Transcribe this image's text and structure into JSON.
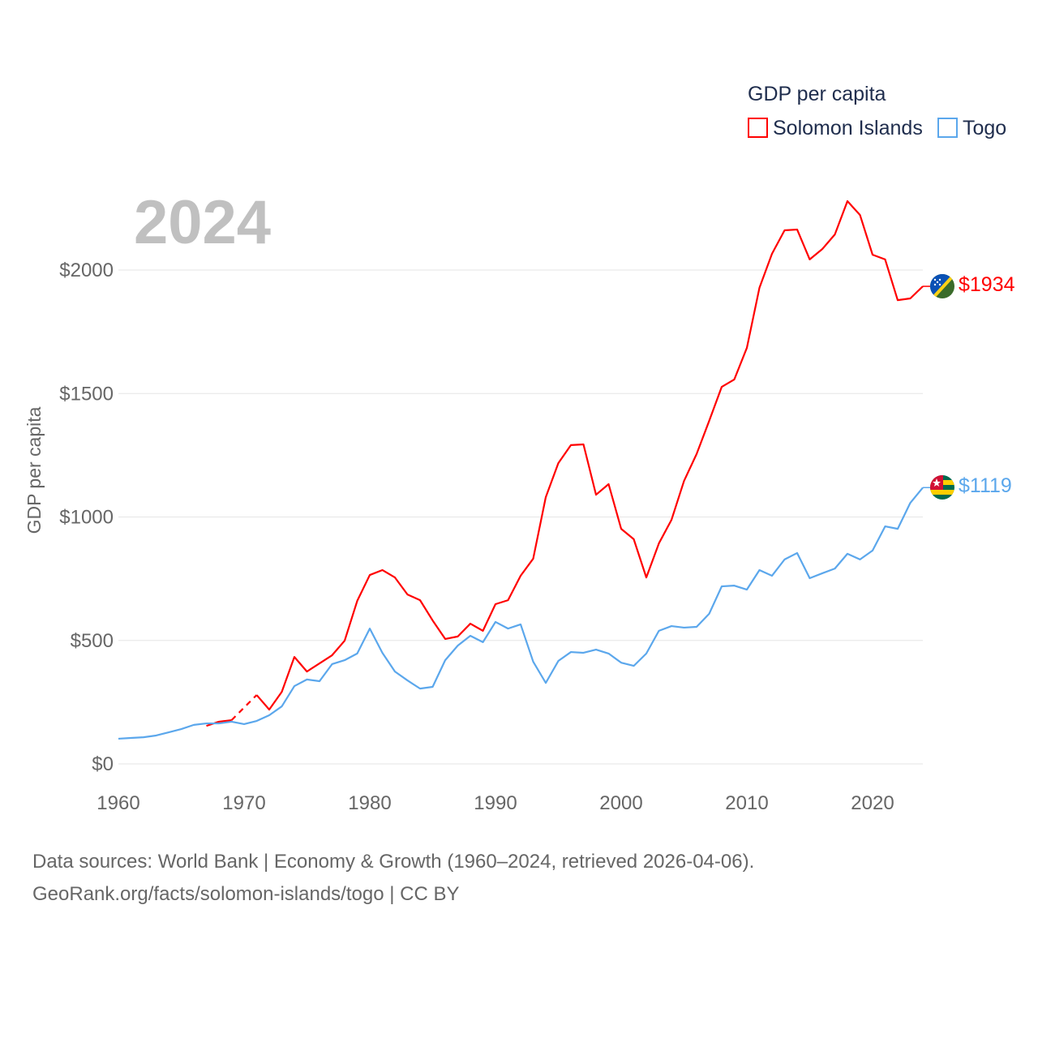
{
  "chart_data": {
    "type": "line",
    "title": "GDP per capita",
    "year_label": "2024",
    "xlabel": "",
    "ylabel": "GDP per capita",
    "xlim": [
      1960,
      2024
    ],
    "ylim": [
      0,
      2300
    ],
    "x_ticks": [
      1960,
      1970,
      1980,
      1990,
      2000,
      2010,
      2020
    ],
    "x_tick_labels": [
      "1960",
      "1970",
      "1980",
      "1990",
      "2000",
      "2010",
      "2020"
    ],
    "y_ticks": [
      0,
      500,
      1000,
      1500,
      2000
    ],
    "y_tick_labels": [
      "$0",
      "$500",
      "$1000",
      "$1500",
      "$2000"
    ],
    "grid": true,
    "legend_placement": "top-right",
    "series": [
      {
        "name": "Solomon Islands",
        "color": "#ff0000",
        "end_label": "$1934",
        "flag": "solomon-islands-flag",
        "start_year": 1967,
        "values": [
          154,
          171,
          177,
          null,
          279,
          220,
          292,
          433,
          374,
          407,
          440,
          499,
          660,
          765,
          785,
          755,
          686,
          663,
          581,
          506,
          516,
          568,
          539,
          647,
          663,
          762,
          831,
          1080,
          1218,
          1291,
          1294,
          1090,
          1133,
          952,
          910,
          755,
          893,
          988,
          1146,
          1255,
          1389,
          1527,
          1557,
          1685,
          1928,
          2066,
          2161,
          2164,
          2043,
          2085,
          2144,
          2279,
          2223,
          2062,
          2043,
          1878,
          1885,
          1934
        ]
      },
      {
        "name": "Togo",
        "color": "#5ba7ec",
        "end_label": "$1119",
        "flag": "togo-flag",
        "start_year": 1960,
        "values": [
          102,
          105,
          108,
          115,
          128,
          141,
          158,
          164,
          164,
          171,
          161,
          174,
          197,
          233,
          315,
          342,
          335,
          404,
          420,
          447,
          548,
          450,
          374,
          338,
          305,
          312,
          420,
          479,
          519,
          493,
          575,
          548,
          565,
          414,
          328,
          417,
          453,
          450,
          463,
          447,
          410,
          397,
          447,
          539,
          558,
          552,
          555,
          608,
          719,
          722,
          706,
          785,
          762,
          828,
          854,
          752,
          772,
          791,
          851,
          828,
          864,
          962,
          952,
          1057,
          1119
        ]
      }
    ]
  },
  "source": {
    "line1": "Data sources: World Bank | Economy & Growth (1960–2024, retrieved 2026-04-06).",
    "line2": "GeoRank.org/facts/solomon-islands/togo | CC BY"
  }
}
